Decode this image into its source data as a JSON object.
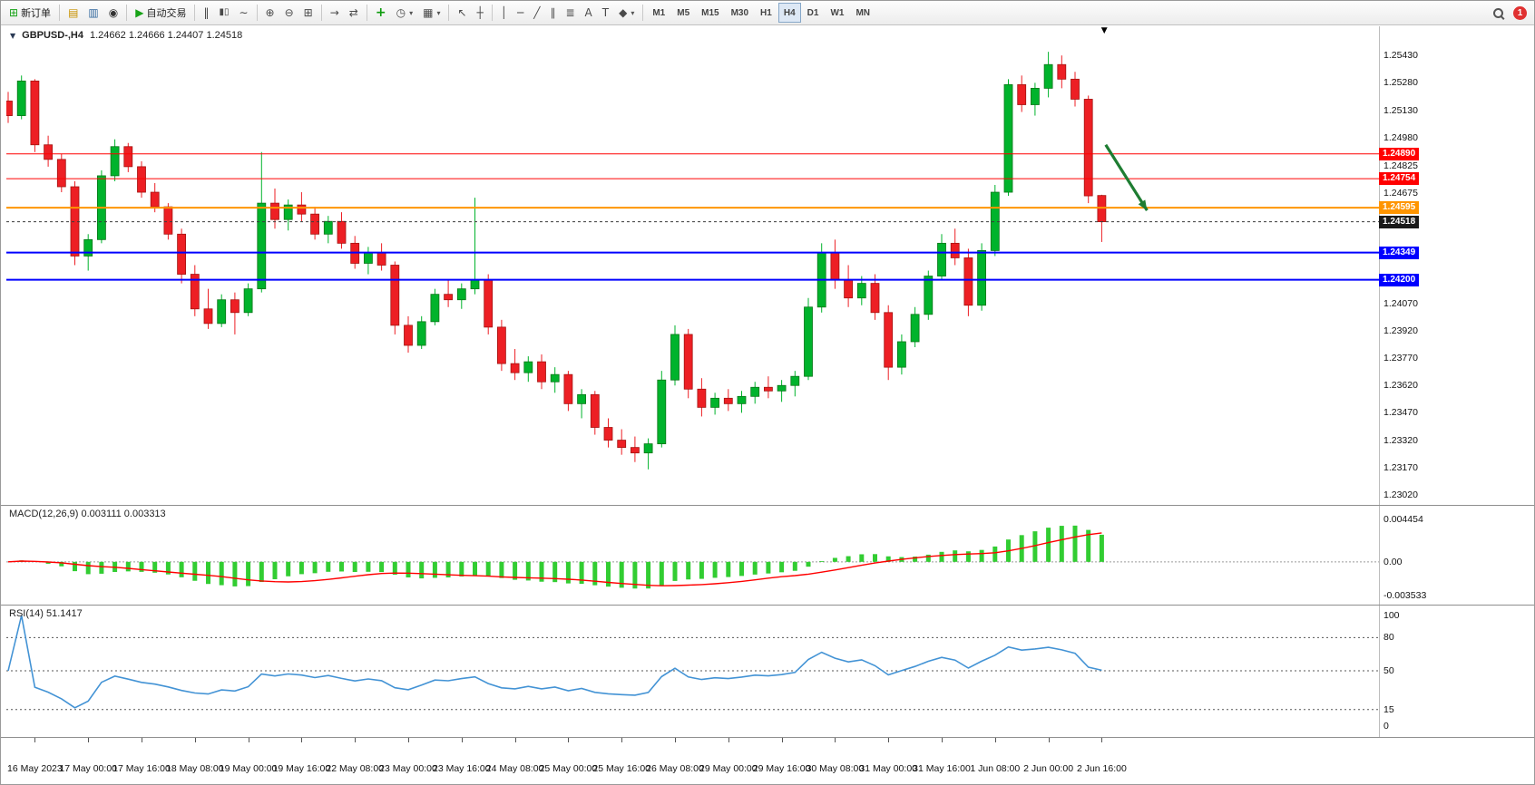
{
  "toolbar": {
    "new_order": "新订单",
    "autotrading": "自动交易",
    "notification_count": "1",
    "timeframes": [
      "M1",
      "M5",
      "M15",
      "M30",
      "H1",
      "H4",
      "D1",
      "W1",
      "MN"
    ],
    "active_timeframe": "H4",
    "glyphs": {
      "collapse": "▼",
      "new_order": "⊞",
      "charts": "▤",
      "market_watch": "▥",
      "navigator": "◉",
      "autotrading": "▶",
      "bars": "‖",
      "candles": "▮▯",
      "line": "∼",
      "zoom_in": "⊕",
      "zoom_out": "⊖",
      "tile": "⊞",
      "autoscroll": "→",
      "shift": "⇄",
      "indicators": "+",
      "periods": "◷",
      "template": "▦",
      "cursor": "↖",
      "crosshair": "┼",
      "vline": "│",
      "hline": "─",
      "tline": "╱",
      "channel": "∥",
      "fibo": "≣",
      "text": "A",
      "label": "T",
      "shapes": "◆",
      "dropdown": "▾",
      "marker": "▼"
    }
  },
  "chart": {
    "title": "GBPUSD-,H4",
    "quote": "1.24662 1.24666 1.24407 1.24518"
  },
  "chart_data": {
    "type": "candlestick",
    "symbol": "GBPUSD-",
    "timeframe": "H4",
    "current_bar": {
      "open": 1.24662,
      "high": 1.24666,
      "low": 1.24407,
      "close": 1.24518
    },
    "y_range": {
      "top": 1.2559,
      "bottom": 1.2296
    },
    "price_axis_labels": [
      "1.25430",
      "1.25280",
      "1.25130",
      "1.24980",
      "1.24825",
      "1.24675",
      "1.24070",
      "1.23920",
      "1.23770",
      "1.23620",
      "1.23470",
      "1.23320",
      "1.23170",
      "1.23020"
    ],
    "x_labels": [
      "16 May 2023",
      "17 May 00:00",
      "17 May 16:00",
      "18 May 08:00",
      "19 May 00:00",
      "19 May 16:00",
      "22 May 08:00",
      "23 May 00:00",
      "23 May 16:00",
      "24 May 08:00",
      "25 May 00:00",
      "25 May 16:00",
      "26 May 08:00",
      "29 May 00:00",
      "29 May 16:00",
      "30 May 08:00",
      "31 May 00:00",
      "31 May 16:00",
      "1 Jun 08:00",
      "2 Jun 00:00",
      "2 Jun 16:00"
    ],
    "lines": [
      {
        "price": 1.2489,
        "label": "1.24890",
        "color": "#ff0000",
        "width": 1,
        "badge": "#ff0000",
        "dash": false
      },
      {
        "price": 1.24754,
        "label": "1.24754",
        "color": "#ff0000",
        "width": 1,
        "badge": "#ff0000",
        "dash": false
      },
      {
        "price": 1.24595,
        "label": "1.24595",
        "color": "#ff9500",
        "width": 2,
        "badge": "#ff9500",
        "dash": false
      },
      {
        "price": 1.24518,
        "label": "1.24518",
        "color": "#3a3a3a",
        "width": 1,
        "badge": "#1a1a1a",
        "dash": true
      },
      {
        "price": 1.24349,
        "label": "1.24349",
        "color": "#0000ff",
        "width": 2,
        "badge": "#0000ff",
        "dash": false
      },
      {
        "price": 1.242,
        "label": "1.24200",
        "color": "#0000ff",
        "width": 2,
        "badge": "#0000ff",
        "dash": false
      }
    ],
    "candles": [
      [
        1.2518,
        1.2523,
        1.2506,
        1.251
      ],
      [
        1.251,
        1.2532,
        1.2508,
        1.2529
      ],
      [
        1.2529,
        1.253,
        1.249,
        1.2494
      ],
      [
        1.2494,
        1.2499,
        1.2482,
        1.2486
      ],
      [
        1.2486,
        1.2489,
        1.2468,
        1.2471
      ],
      [
        1.2471,
        1.2474,
        1.2428,
        1.2433
      ],
      [
        1.2433,
        1.2445,
        1.2425,
        1.2442
      ],
      [
        1.2442,
        1.248,
        1.244,
        1.2477
      ],
      [
        1.2477,
        1.2497,
        1.2474,
        1.2493
      ],
      [
        1.2493,
        1.2495,
        1.2479,
        1.2482
      ],
      [
        1.2482,
        1.2485,
        1.2465,
        1.2468
      ],
      [
        1.2468,
        1.2473,
        1.2457,
        1.246
      ],
      [
        1.246,
        1.2462,
        1.2442,
        1.2445
      ],
      [
        1.2445,
        1.2448,
        1.2418,
        1.2423
      ],
      [
        1.2423,
        1.2428,
        1.24,
        1.2404
      ],
      [
        1.2404,
        1.2415,
        1.2393,
        1.2396
      ],
      [
        1.2396,
        1.2412,
        1.2394,
        1.2409
      ],
      [
        1.2409,
        1.2413,
        1.239,
        1.2402
      ],
      [
        1.2402,
        1.2418,
        1.24,
        1.2415
      ],
      [
        1.2415,
        1.249,
        1.2413,
        1.2462
      ],
      [
        1.2462,
        1.247,
        1.2448,
        1.2453
      ],
      [
        1.2453,
        1.2464,
        1.2447,
        1.2461
      ],
      [
        1.2461,
        1.2468,
        1.2452,
        1.2456
      ],
      [
        1.2456,
        1.246,
        1.2442,
        1.2445
      ],
      [
        1.2445,
        1.2455,
        1.244,
        1.2452
      ],
      [
        1.2452,
        1.2457,
        1.2437,
        1.244
      ],
      [
        1.244,
        1.2444,
        1.2426,
        1.2429
      ],
      [
        1.2429,
        1.2438,
        1.2423,
        1.2435
      ],
      [
        1.2435,
        1.244,
        1.2425,
        1.2428
      ],
      [
        1.2428,
        1.243,
        1.239,
        1.2395
      ],
      [
        1.2395,
        1.24,
        1.238,
        1.2384
      ],
      [
        1.2384,
        1.24,
        1.2382,
        1.2397
      ],
      [
        1.2397,
        1.2415,
        1.2395,
        1.2412
      ],
      [
        1.2412,
        1.242,
        1.2405,
        1.2409
      ],
      [
        1.2409,
        1.2418,
        1.2404,
        1.2415
      ],
      [
        1.2415,
        1.2465,
        1.2412,
        1.242
      ],
      [
        1.242,
        1.2423,
        1.239,
        1.2394
      ],
      [
        1.2394,
        1.2398,
        1.237,
        1.2374
      ],
      [
        1.2374,
        1.2382,
        1.2365,
        1.2369
      ],
      [
        1.2369,
        1.2378,
        1.2364,
        1.2375
      ],
      [
        1.2375,
        1.2379,
        1.236,
        1.2364
      ],
      [
        1.2364,
        1.2372,
        1.2358,
        1.2368
      ],
      [
        1.2368,
        1.237,
        1.2348,
        1.2352
      ],
      [
        1.2352,
        1.236,
        1.2344,
        1.2357
      ],
      [
        1.2357,
        1.2359,
        1.2335,
        1.2339
      ],
      [
        1.2339,
        1.2344,
        1.2328,
        1.2332
      ],
      [
        1.2332,
        1.2338,
        1.2324,
        1.2328
      ],
      [
        1.2328,
        1.2334,
        1.232,
        1.2325
      ],
      [
        1.2325,
        1.2333,
        1.2316,
        1.233
      ],
      [
        1.233,
        1.237,
        1.2328,
        1.2365
      ],
      [
        1.2365,
        1.2395,
        1.2362,
        1.239
      ],
      [
        1.239,
        1.2393,
        1.2355,
        1.236
      ],
      [
        1.236,
        1.2366,
        1.2345,
        1.235
      ],
      [
        1.235,
        1.2358,
        1.2346,
        1.2355
      ],
      [
        1.2355,
        1.236,
        1.2348,
        1.2352
      ],
      [
        1.2352,
        1.2359,
        1.2347,
        1.2356
      ],
      [
        1.2356,
        1.2364,
        1.2352,
        1.2361
      ],
      [
        1.2361,
        1.2367,
        1.2355,
        1.2359
      ],
      [
        1.2359,
        1.2365,
        1.2353,
        1.2362
      ],
      [
        1.2362,
        1.237,
        1.2356,
        1.2367
      ],
      [
        1.2367,
        1.241,
        1.2365,
        1.2405
      ],
      [
        1.2405,
        1.244,
        1.2402,
        1.2435
      ],
      [
        1.2435,
        1.2442,
        1.2415,
        1.242
      ],
      [
        1.242,
        1.2428,
        1.2405,
        1.241
      ],
      [
        1.241,
        1.2422,
        1.2406,
        1.2418
      ],
      [
        1.2418,
        1.2423,
        1.2398,
        1.2402
      ],
      [
        1.2402,
        1.2406,
        1.2365,
        1.2372
      ],
      [
        1.2372,
        1.239,
        1.2368,
        1.2386
      ],
      [
        1.2386,
        1.2405,
        1.2383,
        1.2401
      ],
      [
        1.2401,
        1.2425,
        1.2398,
        1.2422
      ],
      [
        1.2422,
        1.2445,
        1.242,
        1.244
      ],
      [
        1.244,
        1.2448,
        1.2428,
        1.2432
      ],
      [
        1.2432,
        1.2437,
        1.24,
        1.2406
      ],
      [
        1.2406,
        1.244,
        1.2403,
        1.2436
      ],
      [
        1.2436,
        1.2472,
        1.2433,
        1.2468
      ],
      [
        1.2468,
        1.253,
        1.2466,
        1.2527
      ],
      [
        1.2527,
        1.2532,
        1.2512,
        1.2516
      ],
      [
        1.2516,
        1.2528,
        1.251,
        1.2525
      ],
      [
        1.2525,
        1.2545,
        1.252,
        1.2538
      ],
      [
        1.2538,
        1.2543,
        1.2525,
        1.253
      ],
      [
        1.253,
        1.2534,
        1.2515,
        1.2519
      ],
      [
        1.2519,
        1.2521,
        1.2462,
        1.2466
      ],
      [
        1.24662,
        1.24666,
        1.24407,
        1.24518
      ]
    ],
    "indicators": {
      "macd": {
        "label": "MACD(12,26,9)",
        "values": "0.003111 0.003313",
        "params": [
          12,
          26,
          9
        ],
        "range": [
          -0.004,
          0.0052
        ],
        "axis_labels": [
          {
            "text": "0.004454",
            "value": 0.004454
          },
          {
            "text": "0.00",
            "value": 0
          },
          {
            "text": "-0.003533",
            "value": -0.003533
          }
        ]
      },
      "rsi": {
        "label": "RSI(14)",
        "value": "51.1417",
        "period": 14,
        "levels": [
          80,
          50,
          15
        ],
        "range": [
          0,
          100
        ],
        "axis_labels": [
          {
            "text": "100",
            "value": 100
          },
          {
            "text": "80",
            "value": 80
          },
          {
            "text": "50",
            "value": 50
          },
          {
            "text": "15",
            "value": 15
          },
          {
            "text": "0",
            "value": 0
          }
        ]
      }
    },
    "annotations": {
      "arrow": {
        "x1_bar": 82.3,
        "y1_price": 1.2494,
        "x2_bar": 85.4,
        "y2_price": 1.2458
      },
      "time_marker_bar": 82.3
    },
    "colors": {
      "up": "#00b32c",
      "up_border": "#067516",
      "down": "#ed1f24",
      "down_border": "#a31310",
      "macd_hist": "#32cd32",
      "macd_signal": "#ff0000",
      "rsi": "#4393d5",
      "arrow": "#1e7d32"
    }
  }
}
